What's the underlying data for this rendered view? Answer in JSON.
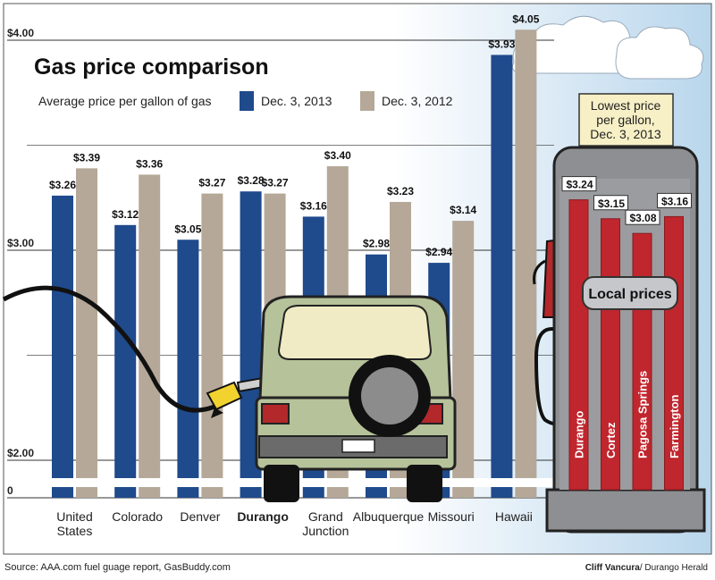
{
  "title": "Gas price comparison",
  "subtitle": "Average price per gallon of gas",
  "colors": {
    "dec2013": "#1f4a8c",
    "dec2012": "#b5a898",
    "local": "#c0262d",
    "pump": "#8d8f92"
  },
  "chart_data": {
    "type": "bar",
    "categories": [
      "United States",
      "Colorado",
      "Denver",
      "Durango",
      "Grand Junction",
      "Albuquerque",
      "Missouri",
      "Hawaii"
    ],
    "category_lines": [
      [
        "United",
        "States"
      ],
      [
        "Colorado"
      ],
      [
        "Denver"
      ],
      [
        "Durango"
      ],
      [
        "Grand",
        "Junction"
      ],
      [
        "Albuquerque"
      ],
      [
        "Missouri"
      ],
      [
        "Hawaii"
      ]
    ],
    "highlight_category": "Durango",
    "series": [
      {
        "name": "Dec. 3, 2013",
        "values": [
          3.26,
          3.12,
          3.05,
          3.28,
          3.16,
          2.98,
          2.94,
          3.93
        ],
        "labels": [
          "$3.26",
          "$3.12",
          "$3.05",
          "$3.28",
          "$3.16",
          "$2.98",
          "$2.94",
          "$3.93"
        ]
      },
      {
        "name": "Dec. 3, 2012",
        "values": [
          3.39,
          3.36,
          3.27,
          3.27,
          3.4,
          3.23,
          3.14,
          4.05
        ],
        "labels": [
          "$3.39",
          "$3.36",
          "$3.27",
          "$3.27",
          "$3.40",
          "$3.23",
          "$3.14",
          "$4.05"
        ]
      }
    ],
    "y_ticks": [
      {
        "value": 4.0,
        "label": "$4.00"
      },
      {
        "value": 3.0,
        "label": "$3.00"
      },
      {
        "value": 2.0,
        "label": "$2.00"
      },
      {
        "value": 0,
        "label": "0"
      }
    ],
    "ylim": [
      2.0,
      4.0
    ],
    "axis_break": true,
    "grid": true,
    "legend": "top"
  },
  "local_prices": {
    "callout_lines": [
      "Lowest price",
      "per gallon,",
      "Dec. 3, 2013"
    ],
    "label": "Local prices",
    "items": [
      {
        "name": "Durango",
        "value": 3.24,
        "label": "$3.24"
      },
      {
        "name": "Cortez",
        "value": 3.15,
        "label": "$3.15"
      },
      {
        "name": "Pagosa Springs",
        "value": 3.08,
        "label": "$3.08"
      },
      {
        "name": "Farmington",
        "value": 3.16,
        "label": "$3.16"
      }
    ]
  },
  "footer": {
    "source": "Source: AAA.com fuel guage report, GasBuddy.com",
    "credit_name": "Cliff Vancura",
    "credit_org": "/ Durango Herald"
  }
}
